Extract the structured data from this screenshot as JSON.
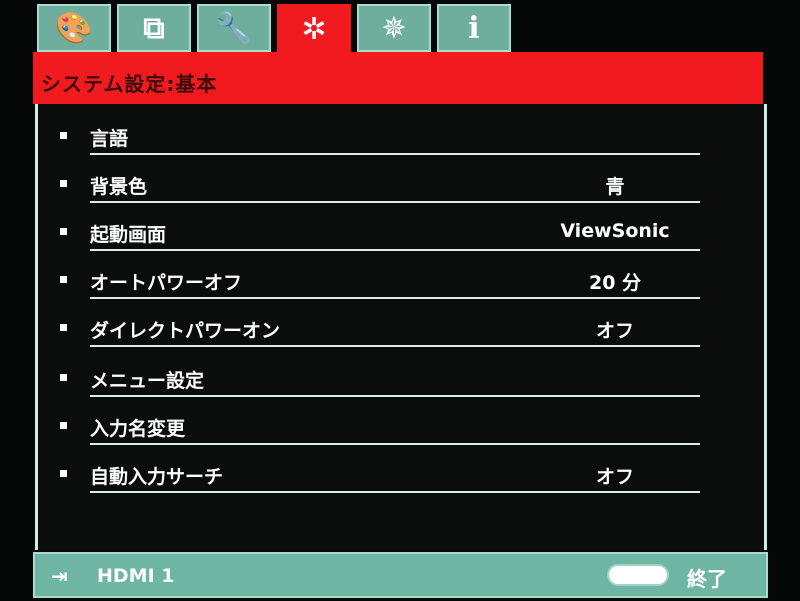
{
  "tabs": [
    {
      "icon": "palette-icon",
      "glyph": "🎨"
    },
    {
      "icon": "display-icon",
      "glyph": "⧉"
    },
    {
      "icon": "wrench-icon",
      "glyph": "🔧"
    },
    {
      "icon": "gear-icon",
      "glyph": "✲",
      "active": true
    },
    {
      "icon": "gear-plus-icon",
      "glyph": "✵"
    },
    {
      "icon": "info-icon",
      "glyph": "i"
    }
  ],
  "header": {
    "title": "システム設定:基本"
  },
  "menu": [
    {
      "label": "言語",
      "value": ""
    },
    {
      "label": "背景色",
      "value": "青"
    },
    {
      "label": "起動画面",
      "value": "ViewSonic"
    },
    {
      "label": "オートパワーオフ",
      "value": "20 分"
    },
    {
      "label": "ダイレクトパワーオン",
      "value": "オフ"
    },
    {
      "label": "メニュー設定",
      "value": ""
    },
    {
      "label": "入力名変更",
      "value": ""
    },
    {
      "label": "自動入力サーチ",
      "value": "オフ"
    }
  ],
  "footer": {
    "source": "HDMI 1",
    "exit_label": "終了"
  },
  "colors": {
    "accent": "#f01a1f",
    "tab": "#6fae9c",
    "footer": "#6fb5a3"
  }
}
